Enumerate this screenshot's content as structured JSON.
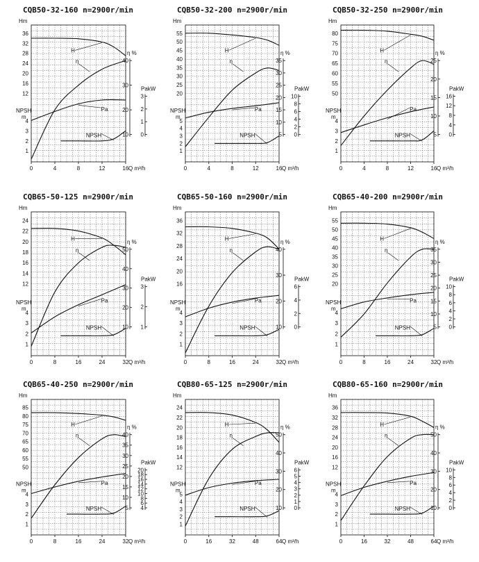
{
  "labels": {
    "head_axis": "Hm",
    "eff_axis": "η %",
    "power_axis": "PakW",
    "npsh_axis_top": "NPSH",
    "npsh_axis_bottom": "m",
    "flow_axis": "Q m³/h",
    "head_curve": "H",
    "eff_curve": "η",
    "power_curve": "Pa",
    "npsh_curve": "NPSH"
  },
  "chart_data": [
    {
      "type": "line",
      "title": "CQB50-32-160 n=2900r/min",
      "x_ticks": [
        0,
        4,
        8,
        12,
        16
      ],
      "head": {
        "ticks": [
          12,
          16,
          20,
          24,
          28,
          32,
          36
        ],
        "x": [
          0,
          4,
          8,
          12,
          14,
          16
        ],
        "y": [
          34,
          34,
          33.8,
          32.5,
          30.5,
          27
        ]
      },
      "efficiency": {
        "ticks": [
          10,
          20,
          30,
          40
        ],
        "x": [
          0,
          4,
          8,
          12,
          16
        ],
        "y": [
          0,
          20,
          30,
          36.5,
          40
        ]
      },
      "power": {
        "ticks": [
          0,
          1,
          2,
          3
        ],
        "x": [
          0,
          4,
          8,
          12,
          16
        ],
        "y": [
          1.1,
          1.8,
          2.4,
          2.7,
          2.7
        ]
      },
      "npsh": {
        "ticks": [
          1,
          2,
          3,
          4
        ],
        "x": [
          5,
          8,
          12,
          14,
          16
        ],
        "y": [
          2,
          2,
          2,
          2.2,
          3
        ]
      }
    },
    {
      "type": "line",
      "title": "CQB50-32-200 n=2900r/min",
      "x_ticks": [
        0,
        4,
        8,
        12,
        16
      ],
      "head": {
        "ticks": [
          20,
          25,
          30,
          35,
          40,
          45,
          50,
          55
        ],
        "x": [
          0,
          4,
          8,
          12,
          14,
          16
        ],
        "y": [
          55,
          55,
          54,
          52.5,
          51,
          48
        ]
      },
      "efficiency": {
        "ticks": [
          5,
          10,
          15,
          20,
          25,
          30,
          35
        ],
        "x": [
          0,
          4,
          8,
          12,
          14,
          16
        ],
        "y": [
          0,
          12,
          23,
          30,
          32,
          31
        ]
      },
      "power": {
        "ticks": [
          0,
          2,
          4,
          6,
          8,
          10
        ],
        "x": [
          0,
          4,
          8,
          12,
          16
        ],
        "y": [
          4.3,
          5.8,
          6.8,
          7.5,
          8.3
        ]
      },
      "npsh": {
        "ticks": [
          1,
          2,
          3,
          4,
          5
        ],
        "x": [
          5,
          8,
          12,
          14,
          16
        ],
        "y": [
          2,
          2,
          2,
          2.1,
          3
        ]
      }
    },
    {
      "type": "line",
      "title": "CQB50-32-250 n=2900r/min",
      "x_ticks": [
        0,
        4,
        8,
        12,
        16
      ],
      "head": {
        "ticks": [
          50,
          55,
          60,
          65,
          70,
          75,
          80
        ],
        "x": [
          0,
          4,
          8,
          12,
          14,
          16
        ],
        "y": [
          81.5,
          81.5,
          81,
          79.5,
          78.5,
          76.5
        ]
      },
      "efficiency": {
        "ticks": [
          5,
          10,
          15,
          20,
          25
        ],
        "x": [
          0,
          4,
          8,
          12,
          14,
          16
        ],
        "y": [
          2,
          10,
          17,
          23,
          25,
          24
        ]
      },
      "power": {
        "ticks": [
          0,
          4,
          8,
          12,
          16
        ],
        "x": [
          0,
          4,
          8,
          12,
          16
        ],
        "y": [
          0.8,
          4,
          7,
          9.5,
          11.5
        ]
      },
      "npsh": {
        "ticks": [
          1,
          2,
          3,
          4
        ],
        "x": [
          5,
          8,
          12,
          14,
          16
        ],
        "y": [
          2,
          2,
          2,
          2.1,
          3
        ]
      }
    },
    {
      "type": "line",
      "title": "CQB65-50-125 n=2900r/min",
      "x_ticks": [
        0,
        8,
        16,
        24,
        32
      ],
      "head": {
        "ticks": [
          12,
          14,
          16,
          18,
          20,
          22,
          24
        ],
        "x": [
          0,
          8,
          16,
          24,
          28,
          32
        ],
        "y": [
          22.5,
          22.5,
          22,
          20.7,
          19.3,
          17.5
        ]
      },
      "efficiency": {
        "ticks": [
          10,
          20,
          30,
          40,
          50
        ],
        "x": [
          0,
          8,
          16,
          24,
          28,
          32
        ],
        "y": [
          0,
          28,
          43,
          51,
          52,
          51
        ]
      },
      "power": {
        "ticks": [
          1,
          2,
          3
        ],
        "x": [
          0,
          8,
          16,
          24,
          32
        ],
        "y": [
          0.7,
          1.5,
          2.1,
          2.6,
          3.1
        ]
      },
      "npsh": {
        "ticks": [
          1,
          2,
          3,
          4
        ],
        "x": [
          10,
          16,
          24,
          28,
          32
        ],
        "y": [
          1.8,
          1.8,
          1.8,
          1.9,
          2.5
        ]
      }
    },
    {
      "type": "line",
      "title": "CQB65-50-160 n=2900r/min",
      "x_ticks": [
        0,
        8,
        16,
        24,
        32
      ],
      "head": {
        "ticks": [
          16,
          20,
          24,
          28,
          32,
          36
        ],
        "x": [
          0,
          8,
          16,
          24,
          28,
          32
        ],
        "y": [
          34,
          34,
          33.5,
          32,
          30.5,
          27
        ]
      },
      "efficiency": {
        "ticks": [
          10,
          20,
          30,
          40
        ],
        "x": [
          0,
          8,
          16,
          24,
          28,
          32
        ],
        "y": [
          0,
          18,
          31,
          39,
          41,
          40
        ]
      },
      "power": {
        "ticks": [
          0,
          2,
          4,
          6
        ],
        "x": [
          0,
          8,
          16,
          24,
          32
        ],
        "y": [
          1.5,
          2.8,
          3.7,
          4.3,
          4.7
        ]
      },
      "npsh": {
        "ticks": [
          1,
          2,
          3,
          4
        ],
        "x": [
          10,
          16,
          24,
          28,
          32
        ],
        "y": [
          1.8,
          1.8,
          1.8,
          1.9,
          2.4
        ]
      }
    },
    {
      "type": "line",
      "title": "CQB65-40-200 n=2900r/min",
      "x_ticks": [
        0,
        8,
        16,
        24,
        32
      ],
      "head": {
        "ticks": [
          20,
          25,
          30,
          35,
          40,
          45,
          50,
          55
        ],
        "x": [
          0,
          8,
          16,
          24,
          28,
          32
        ],
        "y": [
          53.5,
          53.5,
          53,
          51,
          48.5,
          45
        ]
      },
      "efficiency": {
        "ticks": [
          5,
          10,
          15,
          20,
          25,
          30,
          35
        ],
        "x": [
          0,
          8,
          16,
          24,
          28,
          32
        ],
        "y": [
          1,
          10,
          22,
          32,
          35,
          35
        ]
      },
      "power": {
        "ticks": [
          0,
          2,
          4,
          6,
          8,
          10
        ],
        "x": [
          0,
          8,
          16,
          24,
          32
        ],
        "y": [
          4.5,
          6.2,
          7.2,
          8,
          8.6
        ]
      },
      "npsh": {
        "ticks": [
          1,
          2,
          3,
          4
        ],
        "x": [
          12,
          16,
          24,
          28,
          32
        ],
        "y": [
          1.8,
          1.8,
          1.8,
          1.9,
          2.5
        ]
      }
    },
    {
      "type": "line",
      "title": "CQB65-40-250 n=2900r/min",
      "x_ticks": [
        0,
        8,
        16,
        24,
        32
      ],
      "head": {
        "ticks": [
          50,
          55,
          60,
          65,
          70,
          75,
          80,
          85
        ],
        "x": [
          0,
          8,
          16,
          24,
          28,
          32
        ],
        "y": [
          82,
          82,
          81.5,
          80.5,
          79.5,
          77.5
        ]
      },
      "efficiency": {
        "ticks": [
          5,
          10,
          15,
          20,
          25,
          30,
          35,
          40
        ],
        "x": [
          0,
          8,
          16,
          24,
          28,
          32
        ],
        "y": [
          0,
          16,
          29,
          38,
          40,
          39
        ]
      },
      "power": {
        "ticks": [
          4,
          6,
          8,
          10,
          12,
          14,
          16,
          18,
          20
        ],
        "x": [
          0,
          8,
          16,
          24,
          32
        ],
        "y": [
          10,
          12.8,
          15.2,
          17,
          18.5
        ]
      },
      "npsh": {
        "ticks": [
          1,
          2,
          3,
          4
        ],
        "x": [
          12,
          16,
          24,
          28,
          32
        ],
        "y": [
          2,
          2,
          2,
          2.1,
          2.8
        ]
      }
    },
    {
      "type": "line",
      "title": "CQB80-65-125 n=2900r/min",
      "x_ticks": [
        0,
        16,
        32,
        48,
        64
      ],
      "head": {
        "ticks": [
          12,
          14,
          16,
          18,
          20,
          22,
          24
        ],
        "x": [
          0,
          16,
          32,
          48,
          56,
          64
        ],
        "y": [
          23,
          23,
          22.5,
          21,
          19.5,
          17
        ]
      },
      "efficiency": {
        "ticks": [
          10,
          20,
          30,
          40,
          50
        ],
        "x": [
          0,
          16,
          32,
          48,
          56,
          64
        ],
        "y": [
          0,
          26,
          42,
          49,
          51,
          51
        ]
      },
      "power": {
        "ticks": [
          0,
          1,
          2,
          3,
          4,
          5,
          6
        ],
        "x": [
          0,
          16,
          32,
          48,
          64
        ],
        "y": [
          2,
          3.2,
          3.9,
          4.3,
          4.5
        ]
      },
      "npsh": {
        "ticks": [
          1,
          2,
          3,
          4,
          5
        ],
        "x": [
          20,
          32,
          48,
          56,
          64
        ],
        "y": [
          2,
          2,
          2,
          2.1,
          2.8
        ]
      }
    },
    {
      "type": "line",
      "title": "CQB80-65-160 n=2900r/min",
      "x_ticks": [
        0,
        16,
        32,
        48,
        64
      ],
      "head": {
        "ticks": [
          12,
          16,
          20,
          24,
          28,
          32,
          36
        ],
        "x": [
          0,
          16,
          32,
          48,
          56,
          64
        ],
        "y": [
          34,
          34,
          33.8,
          32.5,
          30.5,
          28
        ]
      },
      "efficiency": {
        "ticks": [
          10,
          20,
          30,
          40,
          50
        ],
        "x": [
          0,
          16,
          32,
          48,
          56,
          64
        ],
        "y": [
          3,
          22,
          38,
          48,
          50,
          50
        ]
      },
      "power": {
        "ticks": [
          0,
          2,
          4,
          6,
          8,
          10
        ],
        "x": [
          0,
          16,
          32,
          48,
          64
        ],
        "y": [
          3.2,
          5.4,
          7,
          8.3,
          9.3
        ]
      },
      "npsh": {
        "ticks": [
          1,
          2,
          3,
          4
        ],
        "x": [
          20,
          32,
          48,
          56,
          64
        ],
        "y": [
          2,
          2,
          2,
          2.1,
          2.8
        ]
      }
    }
  ]
}
